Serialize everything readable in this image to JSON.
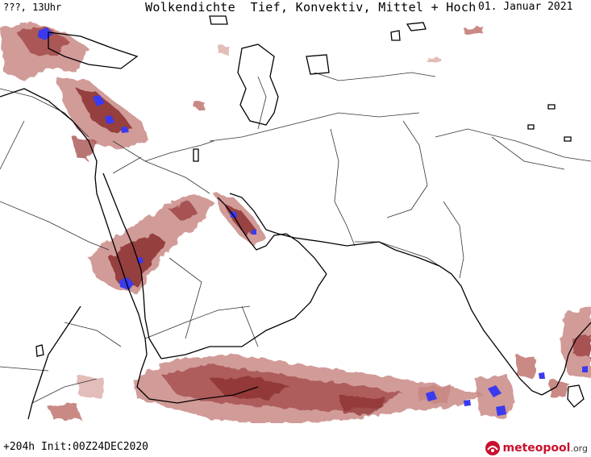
{
  "header": {
    "left": "???, 13Uhr",
    "title": "Wolkendichte  Tief, Konvektiv, Mittel + Hoch",
    "date": "01. Januar 2021"
  },
  "footer": {
    "run": "+204h Init:00Z24DEC2020",
    "logo_main": "meteopool",
    "logo_tld": ".org"
  },
  "colors": {
    "cloud_dark": "#8b2f2f",
    "cloud_mid": "#a85252",
    "cloud_light": "#c98a86",
    "cloud_pale": "#e3bdb9",
    "convective": "#3a3af0",
    "coast": "#000000",
    "border": "#333333",
    "brand": "#c8102e"
  },
  "map": {
    "region": "Middle East / South Asia",
    "layer": "cloud density"
  }
}
